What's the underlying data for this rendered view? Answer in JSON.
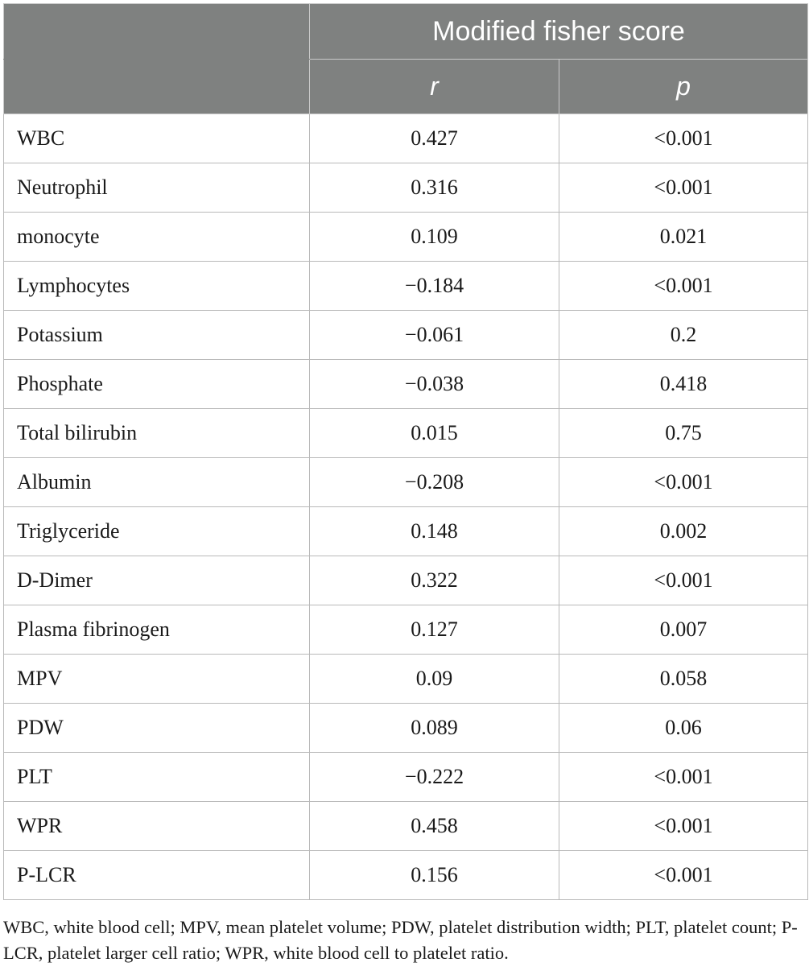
{
  "header": {
    "group_label": "Modified fisher score",
    "col_r": "r",
    "col_p": "p"
  },
  "rows": [
    {
      "variable": "WBC",
      "r": "0.427",
      "p": "<0.001"
    },
    {
      "variable": "Neutrophil",
      "r": "0.316",
      "p": "<0.001"
    },
    {
      "variable": "monocyte",
      "r": "0.109",
      "p": "0.021"
    },
    {
      "variable": "Lymphocytes",
      "r": "−0.184",
      "p": "<0.001"
    },
    {
      "variable": "Potassium",
      "r": "−0.061",
      "p": "0.2"
    },
    {
      "variable": "Phosphate",
      "r": "−0.038",
      "p": "0.418"
    },
    {
      "variable": "Total bilirubin",
      "r": "0.015",
      "p": "0.75"
    },
    {
      "variable": "Albumin",
      "r": "−0.208",
      "p": "<0.001"
    },
    {
      "variable": "Triglyceride",
      "r": "0.148",
      "p": "0.002"
    },
    {
      "variable": "D-Dimer",
      "r": "0.322",
      "p": "<0.001"
    },
    {
      "variable": "Plasma fibrinogen",
      "r": "0.127",
      "p": "0.007"
    },
    {
      "variable": "MPV",
      "r": "0.09",
      "p": "0.058"
    },
    {
      "variable": "PDW",
      "r": "0.089",
      "p": "0.06"
    },
    {
      "variable": "PLT",
      "r": "−0.222",
      "p": "<0.001"
    },
    {
      "variable": "WPR",
      "r": "0.458",
      "p": "<0.001"
    },
    {
      "variable": "P-LCR",
      "r": "0.156",
      "p": "<0.001"
    }
  ],
  "footnote": "WBC, white blood cell; MPV, mean platelet volume; PDW, platelet distribution width; PLT, platelet count; P-LCR, platelet larger cell ratio; WPR, white blood cell to platelet ratio.",
  "colors": {
    "header_bg": "#7f8180",
    "header_text": "#ffffff",
    "grid": "#b9b9b9"
  }
}
